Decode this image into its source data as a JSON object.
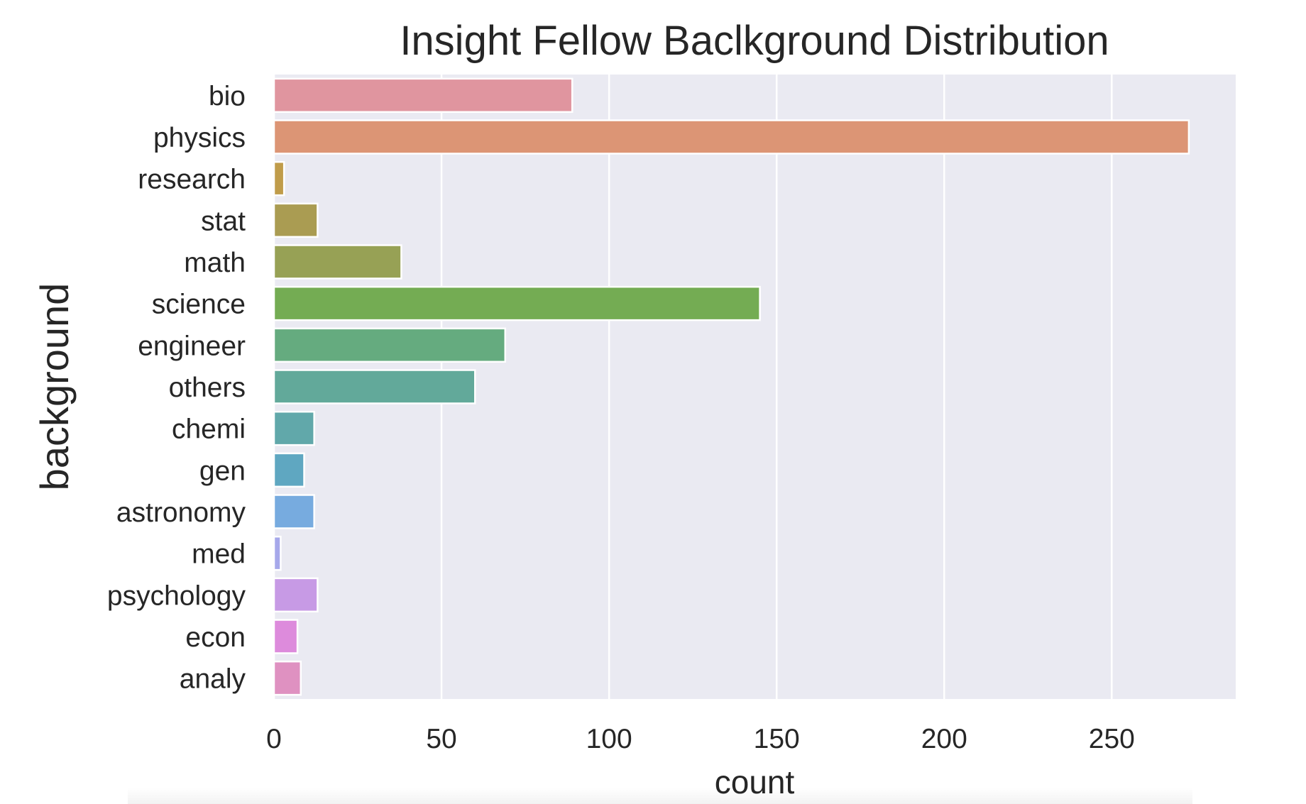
{
  "chart_data": {
    "type": "bar",
    "orientation": "horizontal",
    "title": "Insight Fellow Baclkground Distribution",
    "xlabel": "count",
    "ylabel": "background",
    "categories": [
      "bio",
      "physics",
      "research",
      "stat",
      "math",
      "science",
      "engineer",
      "others",
      "chemi",
      "gen",
      "astronomy",
      "med",
      "psychology",
      "econ",
      "analy"
    ],
    "values": [
      89,
      273,
      3,
      13,
      38,
      145,
      69,
      60,
      12,
      9,
      12,
      2,
      13,
      7,
      8
    ],
    "colors": [
      "#e0959f",
      "#dc9575",
      "#c09c4a",
      "#aa9c52",
      "#97a155",
      "#74ac53",
      "#65ab7f",
      "#62a99a",
      "#61a8aa",
      "#5fa7c1",
      "#77abdf",
      "#a6a8ea",
      "#c79ae5",
      "#dd8bdc",
      "#df91c1"
    ],
    "xlim": [
      0,
      287
    ],
    "xticks": [
      0,
      50,
      100,
      150,
      200,
      250
    ],
    "grid": true,
    "legend": "none",
    "background": "#eaeaf2"
  }
}
